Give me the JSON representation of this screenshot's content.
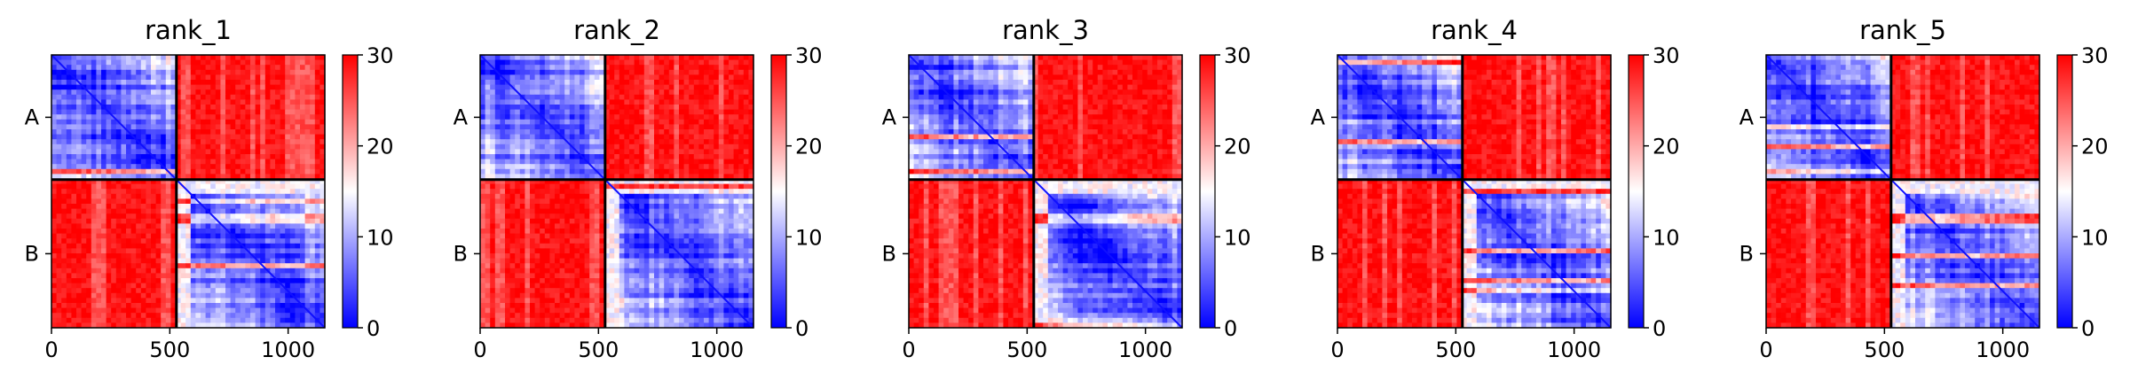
{
  "chart_data": {
    "type": "heatmap",
    "description_free": true,
    "shared": {
      "xticks": [
        0,
        500,
        1000
      ],
      "xtick_labels": [
        "0",
        "500",
        "1000"
      ],
      "xlim": [
        0,
        1155
      ],
      "ylim": [
        1155,
        0
      ],
      "chain_boundary": 528,
      "chain_labels": [
        "A",
        "B"
      ],
      "colorbar": {
        "min": 0,
        "max": 30,
        "ticks": [
          0,
          10,
          20,
          30
        ],
        "tick_labels": [
          "0",
          "10",
          "20",
          "30"
        ],
        "colors": [
          "#0000ff",
          "#ffffff",
          "#ff0000"
        ]
      }
    },
    "panels": [
      {
        "title": "rank_1"
      },
      {
        "title": "rank_2"
      },
      {
        "title": "rank_3"
      },
      {
        "title": "rank_4"
      },
      {
        "title": "rank_5"
      }
    ]
  }
}
